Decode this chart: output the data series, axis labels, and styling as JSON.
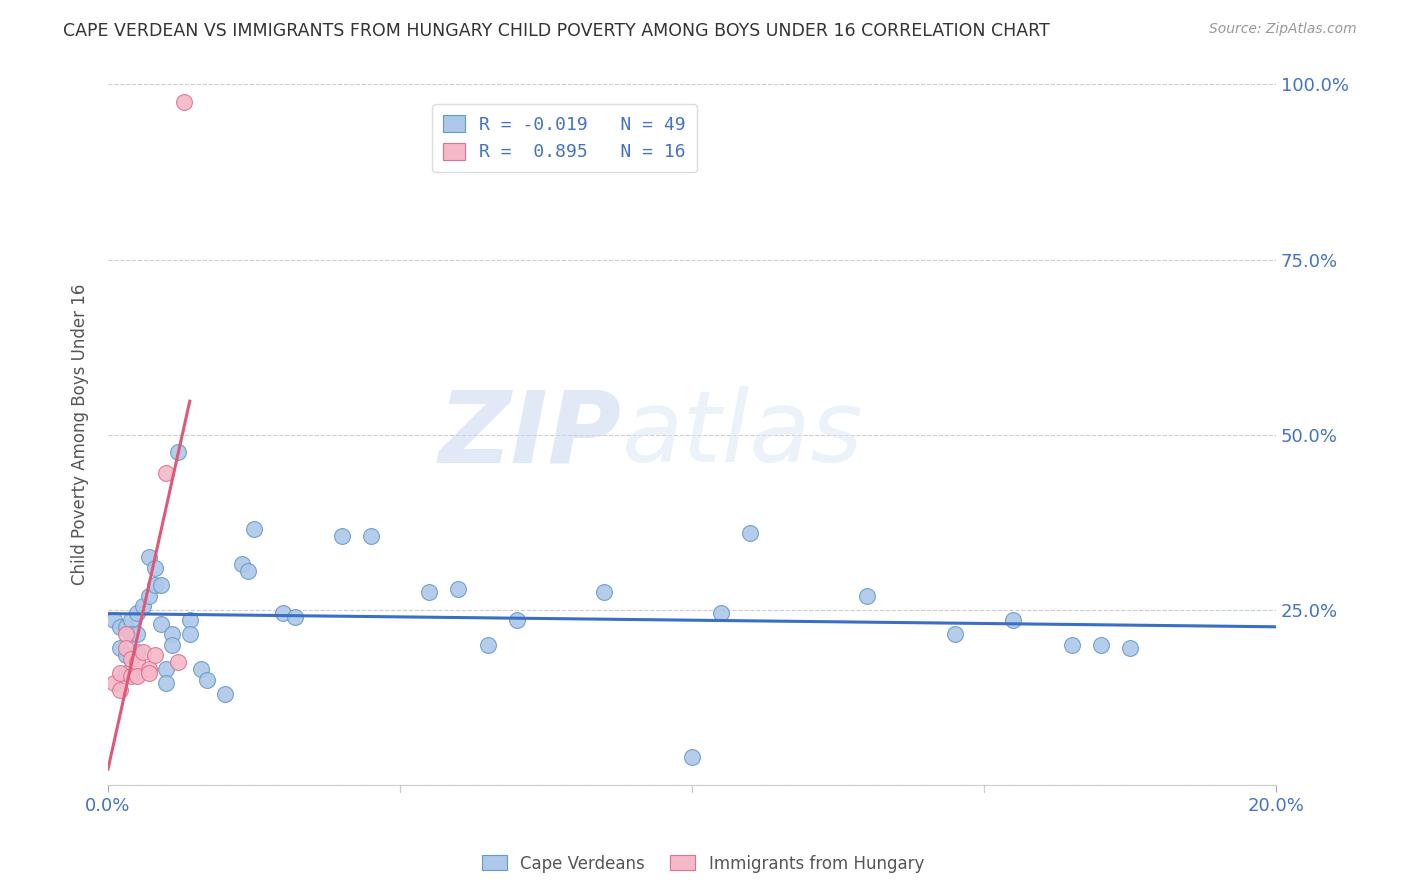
{
  "title": "CAPE VERDEAN VS IMMIGRANTS FROM HUNGARY CHILD POVERTY AMONG BOYS UNDER 16 CORRELATION CHART",
  "source": "Source: ZipAtlas.com",
  "ylabel": "Child Poverty Among Boys Under 16",
  "xlim": [
    0.0,
    0.2
  ],
  "ylim": [
    0.0,
    1.0
  ],
  "yticks": [
    0.0,
    0.25,
    0.5,
    0.75,
    1.0
  ],
  "ytick_labels_right": [
    "",
    "25.0%",
    "50.0%",
    "75.0%",
    "100.0%"
  ],
  "xticks": [
    0.0,
    0.05,
    0.1,
    0.15,
    0.2
  ],
  "xtick_labels": [
    "0.0%",
    "",
    "",
    "",
    "20.0%"
  ],
  "blue_dot_color": "#adc8e8",
  "blue_dot_edge": "#6699cc",
  "pink_dot_color": "#f5b8c8",
  "pink_dot_edge": "#e07090",
  "blue_line_color": "#3a6fc4",
  "pink_line_color": "#e05878",
  "legend_R_blue": "-0.019",
  "legend_N_blue": "49",
  "legend_R_pink": "0.895",
  "legend_N_pink": "16",
  "watermark_zip": "ZIP",
  "watermark_atlas": "atlas",
  "blue_x": [
    0.001,
    0.002,
    0.002,
    0.003,
    0.003,
    0.003,
    0.004,
    0.004,
    0.005,
    0.005,
    0.005,
    0.006,
    0.007,
    0.007,
    0.008,
    0.008,
    0.009,
    0.009,
    0.01,
    0.01,
    0.011,
    0.011,
    0.012,
    0.014,
    0.014,
    0.016,
    0.017,
    0.02,
    0.023,
    0.024,
    0.025,
    0.03,
    0.032,
    0.04,
    0.045,
    0.055,
    0.06,
    0.065,
    0.07,
    0.085,
    0.1,
    0.105,
    0.11,
    0.13,
    0.145,
    0.155,
    0.165,
    0.17,
    0.175
  ],
  "blue_y": [
    0.235,
    0.225,
    0.195,
    0.225,
    0.185,
    0.16,
    0.235,
    0.215,
    0.245,
    0.215,
    0.19,
    0.255,
    0.325,
    0.27,
    0.31,
    0.285,
    0.285,
    0.23,
    0.165,
    0.145,
    0.215,
    0.2,
    0.475,
    0.235,
    0.215,
    0.165,
    0.15,
    0.13,
    0.315,
    0.305,
    0.365,
    0.245,
    0.24,
    0.355,
    0.355,
    0.275,
    0.28,
    0.2,
    0.235,
    0.275,
    0.04,
    0.245,
    0.36,
    0.27,
    0.215,
    0.235,
    0.2,
    0.2,
    0.195
  ],
  "pink_x": [
    0.001,
    0.002,
    0.002,
    0.003,
    0.003,
    0.004,
    0.004,
    0.005,
    0.005,
    0.006,
    0.007,
    0.007,
    0.008,
    0.01,
    0.012,
    0.013
  ],
  "pink_y": [
    0.145,
    0.16,
    0.135,
    0.215,
    0.195,
    0.155,
    0.18,
    0.175,
    0.155,
    0.19,
    0.165,
    0.16,
    0.185,
    0.445,
    0.175,
    0.975
  ],
  "background_color": "#ffffff",
  "grid_color": "#cccccc",
  "axis_color": "#4472c4",
  "label_color": "#555555"
}
